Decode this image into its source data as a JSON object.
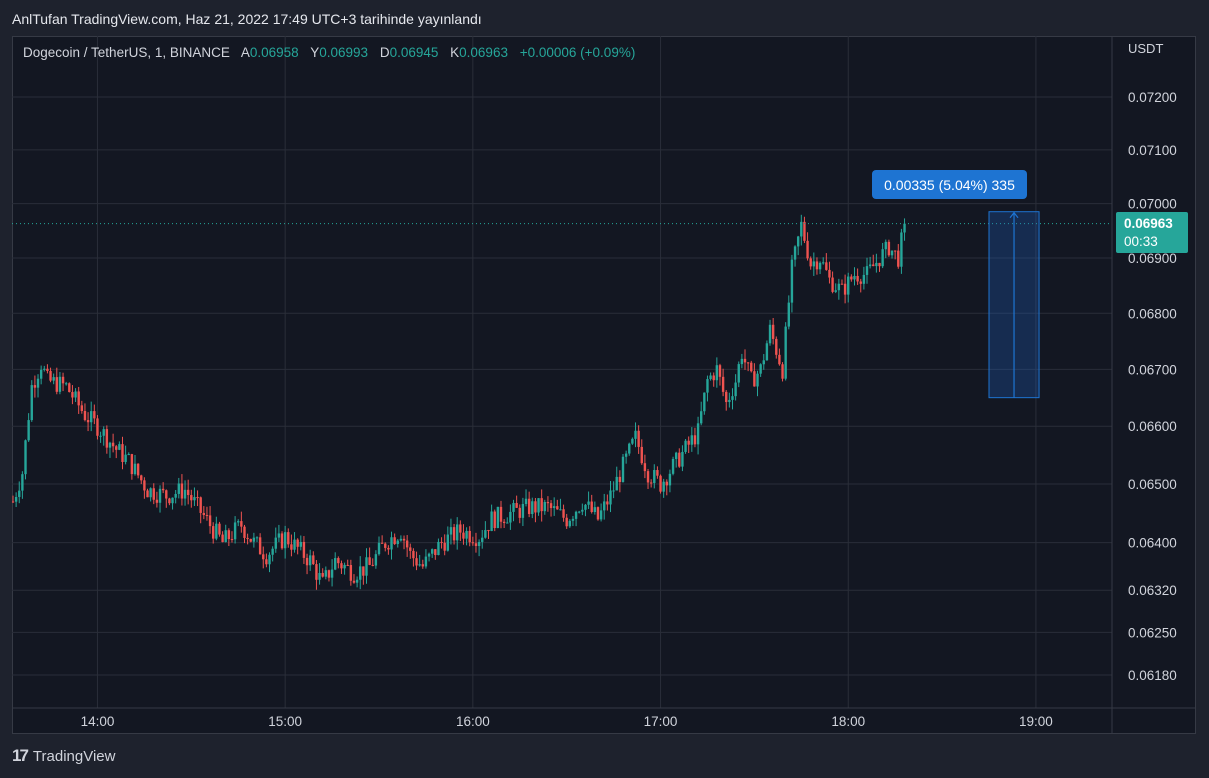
{
  "caption": "AnlTufan TradingView.com, Haz 21, 2022 17:49 UTC+3 tarihinde yayınlandı",
  "legend": {
    "symbol": "Dogecoin / TetherUS, 1, BINANCE",
    "open_label": "A",
    "open": "0.06958",
    "high_label": "Y",
    "high": "0.06993",
    "low_label": "D",
    "low": "0.06945",
    "close_label": "K",
    "close": "0.06963",
    "change": "+0.00006 (+0.09%)"
  },
  "price_tag": {
    "price": "0.06963",
    "countdown": "00:33"
  },
  "measure_label": "0.00335 (5.04%) 335",
  "footer": {
    "logo_mark": "17",
    "logo_text": "TradingView"
  },
  "colors": {
    "up": "#26a69a",
    "down": "#ef5350",
    "bg": "#131722",
    "grid": "#2a2e39",
    "measure": "#1e74d2"
  },
  "chart_data": {
    "type": "candlestick",
    "currency": "USDT",
    "y_ticks": [
      "0.07200",
      "0.07100",
      "0.07000",
      "0.06900",
      "0.06800",
      "0.06700",
      "0.06600",
      "0.06500",
      "0.06400",
      "0.06320",
      "0.06250",
      "0.06180"
    ],
    "x_ticks": [
      "14:00",
      "15:00",
      "16:00",
      "17:00",
      "18:00",
      "19:00"
    ],
    "x_range_minutes": [
      813,
      1164
    ],
    "last_price": 0.06963,
    "measure": {
      "start_minute": 1125,
      "end_minute": 1141,
      "from": 0.0665,
      "to": 0.06985
    },
    "anchors": [
      [
        813,
        0.0647
      ],
      [
        816,
        0.0652
      ],
      [
        819,
        0.0667
      ],
      [
        822,
        0.0671
      ],
      [
        824,
        0.0668
      ],
      [
        830,
        0.0667
      ],
      [
        836,
        0.0662
      ],
      [
        840,
        0.066
      ],
      [
        846,
        0.0656
      ],
      [
        850,
        0.0654
      ],
      [
        856,
        0.0649
      ],
      [
        862,
        0.0648
      ],
      [
        868,
        0.0649
      ],
      [
        872,
        0.0646
      ],
      [
        876,
        0.0643
      ],
      [
        880,
        0.064
      ],
      [
        886,
        0.0643
      ],
      [
        890,
        0.064
      ],
      [
        894,
        0.0638
      ],
      [
        900,
        0.0641
      ],
      [
        904,
        0.0639
      ],
      [
        908,
        0.0637
      ],
      [
        912,
        0.0633
      ],
      [
        916,
        0.0637
      ],
      [
        922,
        0.0635
      ],
      [
        927,
        0.0636
      ],
      [
        932,
        0.064
      ],
      [
        937,
        0.0642
      ],
      [
        940,
        0.0638
      ],
      [
        944,
        0.0636
      ],
      [
        950,
        0.064
      ],
      [
        956,
        0.0642
      ],
      [
        962,
        0.0641
      ],
      [
        966,
        0.0644
      ],
      [
        972,
        0.0645
      ],
      [
        978,
        0.0646
      ],
      [
        984,
        0.0646
      ],
      [
        990,
        0.0644
      ],
      [
        995,
        0.0647
      ],
      [
        1000,
        0.0644
      ],
      [
        1004,
        0.0648
      ],
      [
        1008,
        0.0653
      ],
      [
        1012,
        0.0658
      ],
      [
        1016,
        0.0652
      ],
      [
        1020,
        0.065
      ],
      [
        1024,
        0.0653
      ],
      [
        1028,
        0.0656
      ],
      [
        1032,
        0.0659
      ],
      [
        1035,
        0.0668
      ],
      [
        1038,
        0.067
      ],
      [
        1041,
        0.0664
      ],
      [
        1044,
        0.0668
      ],
      [
        1046,
        0.0673
      ],
      [
        1049,
        0.0668
      ],
      [
        1052,
        0.067
      ],
      [
        1055,
        0.0677
      ],
      [
        1059,
        0.067
      ],
      [
        1062,
        0.0688
      ],
      [
        1065,
        0.0696
      ],
      [
        1068,
        0.0689
      ],
      [
        1071,
        0.069
      ],
      [
        1074,
        0.0686
      ],
      [
        1078,
        0.0684
      ],
      [
        1082,
        0.0687
      ],
      [
        1086,
        0.0687
      ],
      [
        1090,
        0.069
      ],
      [
        1093,
        0.0692
      ],
      [
        1096,
        0.069
      ],
      [
        1098,
        0.0696
      ]
    ]
  }
}
